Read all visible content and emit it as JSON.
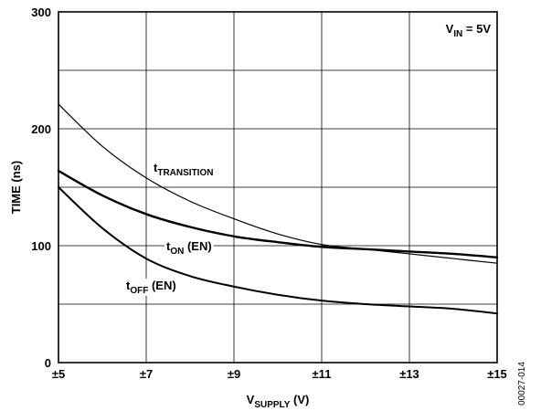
{
  "chart_data": {
    "type": "line",
    "xlabel": {
      "main": "V",
      "sub": "SUPPLY",
      "suffix": " (V)"
    },
    "ylabel": "TIME (ns)",
    "xlim": [
      5,
      15
    ],
    "ylim": [
      0,
      300
    ],
    "x_ticks": [
      5,
      7,
      9,
      11,
      13,
      15
    ],
    "x_tick_labels": [
      "±5",
      "±7",
      "±9",
      "±11",
      "±13",
      "±15"
    ],
    "y_ticks": [
      0,
      100,
      200,
      300
    ],
    "y_tick_labels": [
      "0",
      "100",
      "200",
      "300"
    ],
    "grid": true,
    "condition": {
      "main": "V",
      "sub": "IN",
      "suffix": " = 5V"
    },
    "figure_id": "00027-014",
    "series": [
      {
        "name": "TRANSITION",
        "label": {
          "main": "t",
          "sub": "TRANSITION",
          "suffix": ""
        },
        "x": [
          5,
          6,
          7,
          8,
          9,
          10,
          11,
          12,
          13,
          14,
          15
        ],
        "y": [
          221,
          185,
          158,
          138,
          123,
          110,
          101,
          97,
          93,
          89,
          85
        ],
        "stroke_width": 1.2
      },
      {
        "name": "ON (EN)",
        "label": {
          "main": "t",
          "sub": "ON",
          "suffix": " (EN)"
        },
        "x": [
          5,
          6,
          7,
          8,
          9,
          10,
          11,
          12,
          13,
          14,
          15
        ],
        "y": [
          164,
          143,
          127,
          116,
          108,
          103,
          99,
          97,
          95,
          93,
          90
        ],
        "stroke_width": 2.4
      },
      {
        "name": "OFF (EN)",
        "label": {
          "main": "t",
          "sub": "OFF",
          "suffix": " (EN)"
        },
        "x": [
          5,
          6,
          7,
          8,
          9,
          10,
          11,
          12,
          13,
          14,
          15
        ],
        "y": [
          150,
          115,
          89,
          74,
          65,
          58,
          53,
          50,
          48,
          46,
          42
        ],
        "stroke_width": 2.0
      }
    ]
  }
}
